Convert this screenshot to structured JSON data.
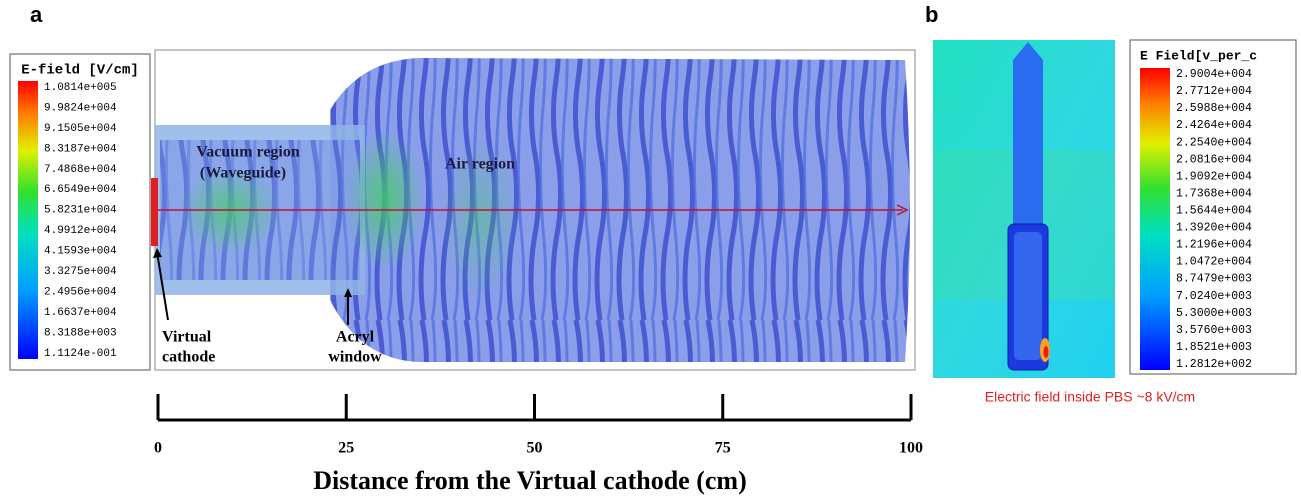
{
  "panel_a": {
    "label": "a",
    "colorbar": {
      "title": "E-field [V/cm]",
      "labels": [
        "1.0814e+005",
        "9.9824e+004",
        "9.1505e+004",
        "8.3187e+004",
        "7.4868e+004",
        "6.6549e+004",
        "5.8231e+004",
        "4.9912e+004",
        "4.1593e+004",
        "3.3275e+004",
        "2.4956e+004",
        "1.6637e+004",
        "8.3188e+003",
        "1.1124e-001"
      ]
    },
    "annotations": {
      "vacuum": "Vacuum region",
      "waveguide": "(Waveguide)",
      "air": "Air region",
      "cathode_1": "Virtual",
      "cathode_2": "cathode",
      "window_1": "Acryl",
      "window_2": "window"
    },
    "axis": {
      "lim": [
        0,
        100
      ],
      "ticks": [
        0,
        25,
        50,
        75,
        100
      ],
      "label": "Distance from the Virtual cathode (cm)"
    }
  },
  "panel_b": {
    "label": "b",
    "colorbar": {
      "title": "E Field[v_per_c",
      "labels": [
        "2.9004e+004",
        "2.7712e+004",
        "2.5988e+004",
        "2.4264e+004",
        "2.2540e+004",
        "2.0816e+004",
        "1.9092e+004",
        "1.7368e+004",
        "1.5644e+004",
        "1.3920e+004",
        "1.2196e+004",
        "1.0472e+004",
        "8.7479e+003",
        "7.0240e+003",
        "5.3000e+003",
        "3.5760e+003",
        "1.8521e+003",
        "1.2812e+002"
      ]
    },
    "caption": "Electric field inside PBS ~8 kV/cm"
  }
}
